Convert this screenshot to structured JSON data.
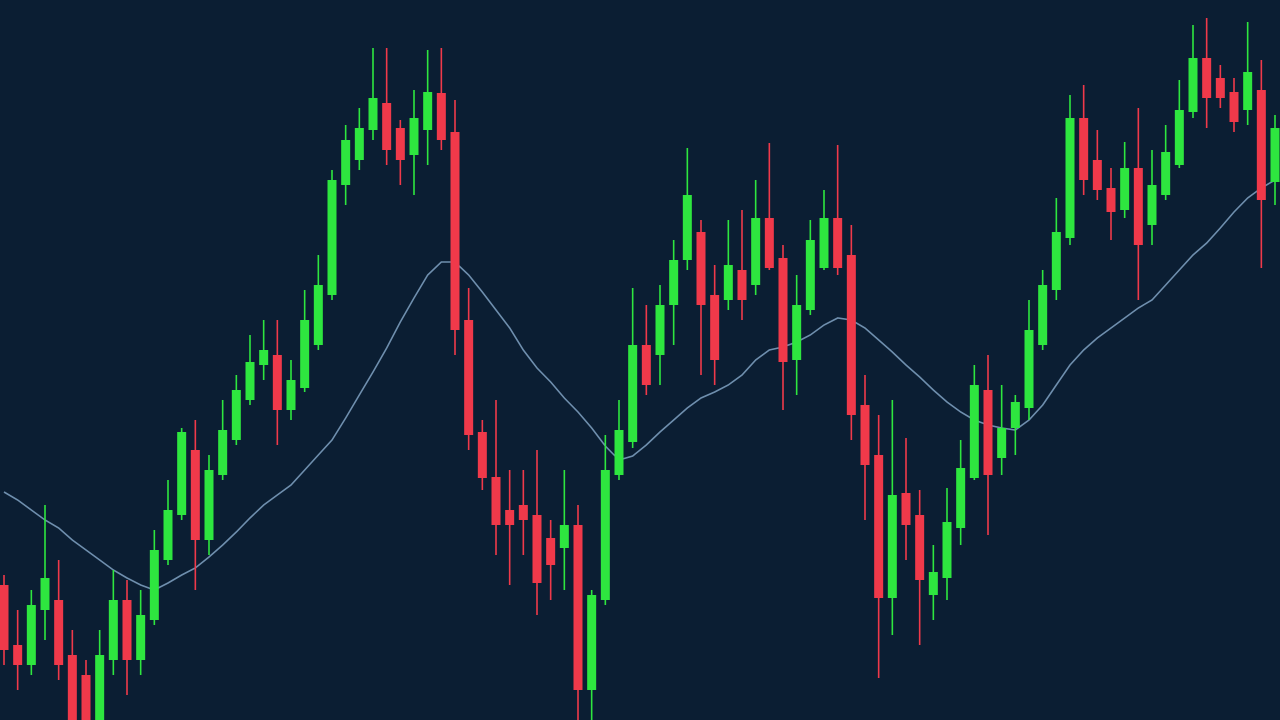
{
  "chart_data": {
    "type": "candlestick",
    "up_color": "#2ee63f",
    "down_color": "#f0394a",
    "background": "#0b1e33",
    "ylim": [
      0,
      720
    ],
    "open": [
      135,
      75,
      55,
      110,
      120,
      65,
      45,
      0,
      60,
      120,
      60,
      100,
      160,
      205,
      270,
      180,
      245,
      280,
      320,
      355,
      365,
      310,
      332,
      375,
      425,
      535,
      560,
      590,
      617,
      592,
      565,
      590,
      627,
      588,
      400,
      288,
      243,
      210,
      215,
      205,
      182,
      172,
      195,
      30,
      120,
      245,
      278,
      375,
      365,
      415,
      460,
      488,
      425,
      420,
      450,
      435,
      502,
      462,
      360,
      410,
      452,
      502,
      465,
      315,
      265,
      122,
      227,
      205,
      125,
      142,
      192,
      242,
      330,
      262,
      292,
      312,
      375,
      430,
      482,
      602,
      560,
      532,
      510,
      552,
      495,
      525,
      555,
      608,
      662,
      642,
      628,
      610,
      630,
      538
    ],
    "close": [
      70,
      55,
      115,
      142,
      55,
      0,
      0,
      65,
      120,
      60,
      105,
      170,
      210,
      288,
      180,
      250,
      290,
      330,
      358,
      370,
      310,
      340,
      400,
      435,
      540,
      580,
      592,
      622,
      570,
      560,
      602,
      628,
      580,
      390,
      285,
      242,
      195,
      195,
      200,
      137,
      155,
      195,
      30,
      125,
      250,
      290,
      375,
      335,
      415,
      460,
      525,
      415,
      360,
      455,
      420,
      502,
      452,
      358,
      415,
      480,
      502,
      452,
      305,
      255,
      122,
      225,
      195,
      140,
      148,
      198,
      252,
      335,
      245,
      292,
      318,
      390,
      435,
      488,
      602,
      540,
      530,
      508,
      552,
      475,
      535,
      568,
      610,
      662,
      622,
      622,
      598,
      648,
      520,
      592
    ],
    "high": [
      145,
      110,
      130,
      215,
      160,
      90,
      60,
      90,
      150,
      140,
      130,
      190,
      240,
      292,
      300,
      265,
      320,
      345,
      385,
      400,
      400,
      360,
      430,
      465,
      550,
      595,
      612,
      672,
      672,
      600,
      630,
      670,
      672,
      620,
      432,
      300,
      320,
      250,
      250,
      270,
      200,
      250,
      215,
      130,
      285,
      320,
      432,
      415,
      435,
      480,
      572,
      500,
      455,
      500,
      510,
      540,
      577,
      475,
      445,
      500,
      530,
      575,
      495,
      345,
      305,
      320,
      282,
      230,
      175,
      232,
      280,
      355,
      365,
      335,
      325,
      420,
      450,
      522,
      625,
      635,
      590,
      552,
      578,
      612,
      570,
      595,
      640,
      695,
      702,
      655,
      642,
      698,
      660,
      605
    ],
    "low": [
      55,
      30,
      45,
      80,
      40,
      0,
      0,
      0,
      45,
      25,
      45,
      95,
      155,
      200,
      130,
      165,
      240,
      275,
      315,
      340,
      275,
      300,
      328,
      370,
      420,
      515,
      550,
      580,
      555,
      535,
      525,
      555,
      570,
      365,
      270,
      230,
      165,
      135,
      165,
      105,
      120,
      130,
      0,
      0,
      115,
      240,
      272,
      325,
      335,
      375,
      450,
      345,
      335,
      410,
      400,
      425,
      450,
      310,
      325,
      405,
      450,
      445,
      280,
      200,
      42,
      85,
      160,
      75,
      100,
      120,
      175,
      240,
      185,
      245,
      265,
      300,
      370,
      420,
      475,
      525,
      520,
      480,
      502,
      420,
      475,
      520,
      552,
      602,
      592,
      612,
      588,
      595,
      452,
      515
    ],
    "moving_average": {
      "color": "#6f8fae",
      "values": [
        228,
        220,
        210,
        200,
        192,
        180,
        170,
        160,
        150,
        142,
        135,
        130,
        137,
        145,
        152,
        163,
        175,
        188,
        202,
        215,
        225,
        235,
        250,
        265,
        280,
        302,
        325,
        348,
        372,
        398,
        422,
        445,
        458,
        458,
        445,
        428,
        410,
        392,
        370,
        352,
        338,
        322,
        308,
        292,
        274,
        260,
        264,
        275,
        288,
        300,
        312,
        322,
        328,
        335,
        345,
        360,
        370,
        373,
        378,
        385,
        395,
        402,
        400,
        392,
        380,
        368,
        355,
        343,
        330,
        318,
        308,
        300,
        295,
        292,
        290,
        300,
        315,
        335,
        355,
        370,
        382,
        392,
        402,
        412,
        420,
        435,
        450,
        465,
        477,
        492,
        508,
        522,
        532,
        540
      ]
    }
  }
}
